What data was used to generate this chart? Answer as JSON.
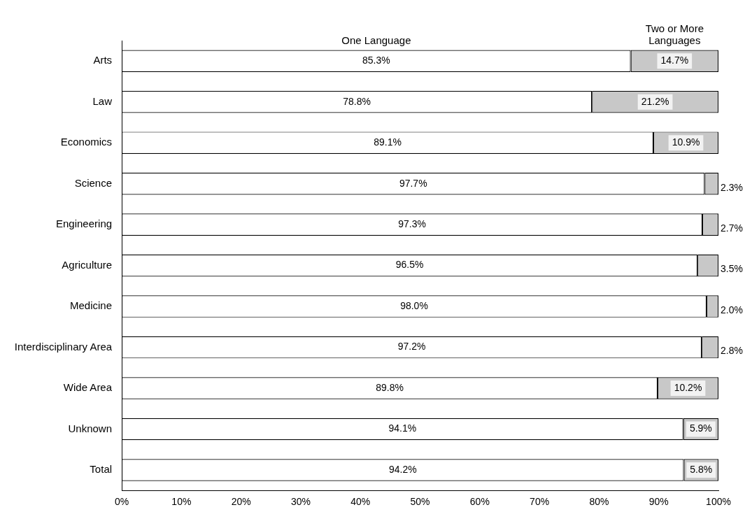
{
  "chart_data": {
    "type": "bar",
    "orientation": "horizontal",
    "stacked": true,
    "categories": [
      "Arts",
      "Law",
      "Economics",
      "Science",
      "Engineering",
      "Agriculture",
      "Medicine",
      "Interdisciplinary Area",
      "Wide Area",
      "Unknown",
      "Total"
    ],
    "series": [
      {
        "name": "One Language",
        "color": "#ffffff",
        "values": [
          85.3,
          78.8,
          89.1,
          97.7,
          97.3,
          96.5,
          98.0,
          97.2,
          89.8,
          94.1,
          94.2
        ],
        "value_labels": [
          "85.3%",
          "78.8%",
          "89.1%",
          "97.7%",
          "97.3%",
          "96.5%",
          "98.0%",
          "97.2%",
          "89.8%",
          "94.1%",
          "94.2%"
        ]
      },
      {
        "name": "Two or More Languages",
        "color": "#c8c8c8",
        "values": [
          14.7,
          21.2,
          10.9,
          2.3,
          2.7,
          3.5,
          2.0,
          2.8,
          10.2,
          5.9,
          5.8
        ],
        "value_labels": [
          "14.7%",
          "21.2%",
          "10.9%",
          "2.3%",
          "2.7%",
          "3.5%",
          "2.0%",
          "2.8%",
          "10.2%",
          "5.9%",
          "5.8%"
        ]
      }
    ],
    "xlim": [
      0,
      100
    ],
    "xticks": [
      {
        "value": 0,
        "label": "0%"
      },
      {
        "value": 10,
        "label": "10%"
      },
      {
        "value": 20,
        "label": "20%"
      },
      {
        "value": 30,
        "label": "30%"
      },
      {
        "value": 40,
        "label": "40%"
      },
      {
        "value": 50,
        "label": "50%"
      },
      {
        "value": 60,
        "label": "60%"
      },
      {
        "value": 70,
        "label": "70%"
      },
      {
        "value": 80,
        "label": "80%"
      },
      {
        "value": 90,
        "label": "90%"
      },
      {
        "value": 100,
        "label": "100%"
      }
    ],
    "grid": false,
    "legend": false
  }
}
